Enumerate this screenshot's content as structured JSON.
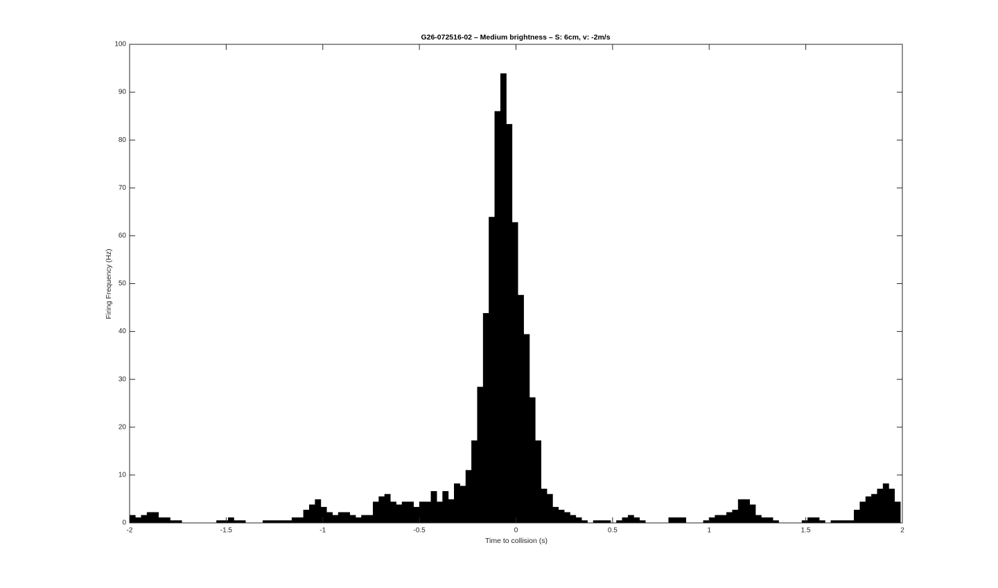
{
  "chart_data": {
    "type": "histogram",
    "title": "G26-072516-02 –  Medium brightness  – S: 6cm, v: -2m/s",
    "xlabel": "Time to collision (s)",
    "ylabel": "Firing Frequency (Hz)",
    "color": "#000000",
    "bins": [
      -2,
      -1.97,
      -1.94,
      -1.91,
      -1.88,
      -1.85,
      -1.82,
      -1.79,
      -1.76,
      -1.73,
      -1.7,
      -1.67,
      -1.64,
      -1.61,
      -1.58,
      -1.55,
      -1.52,
      -1.49,
      -1.46,
      -1.43,
      -1.4,
      -1.37,
      -1.34,
      -1.31,
      -1.28,
      -1.25,
      -1.22,
      -1.19,
      -1.16,
      -1.13,
      -1.1,
      -1.07,
      -1.04,
      -1.01,
      -0.98,
      -0.95,
      -0.92,
      -0.89,
      -0.86,
      -0.83,
      -0.8,
      -0.77,
      -0.74,
      -0.71,
      -0.68,
      -0.65,
      -0.62,
      -0.59,
      -0.56,
      -0.53,
      -0.5,
      -0.47,
      -0.44,
      -0.41,
      -0.38,
      -0.35,
      -0.32,
      -0.29,
      -0.26,
      -0.23,
      -0.2,
      -0.17,
      -0.14,
      -0.11,
      -0.08,
      -0.05,
      -0.02,
      0.01,
      0.04,
      0.07,
      0.1,
      0.13,
      0.16,
      0.19,
      0.22,
      0.25,
      0.28,
      0.31,
      0.34,
      0.37,
      0.4,
      0.43,
      0.46,
      0.49,
      0.52,
      0.55,
      0.58,
      0.61,
      0.64,
      0.67,
      0.7,
      0.73,
      0.76,
      0.79,
      0.82,
      0.85,
      0.88,
      0.91,
      0.94,
      0.97,
      1.0,
      1.03,
      1.06,
      1.09,
      1.12,
      1.15,
      1.18,
      1.21,
      1.24,
      1.27,
      1.3,
      1.33,
      1.36,
      1.39,
      1.42,
      1.45,
      1.48,
      1.51,
      1.54,
      1.57,
      1.6,
      1.63,
      1.66,
      1.69,
      1.72,
      1.75,
      1.78,
      1.81,
      1.84,
      1.87,
      1.9,
      1.93,
      1.96,
      1.99
    ],
    "values": [
      1.6,
      1.1,
      1.6,
      2.2,
      2.2,
      1.1,
      1.1,
      0.5,
      0.5,
      0,
      0,
      0,
      0,
      0,
      0,
      0.5,
      0.5,
      1.1,
      0.5,
      0.5,
      0,
      0,
      0,
      0.5,
      0.5,
      0.5,
      0.5,
      0.5,
      1.1,
      1.1,
      2.7,
      3.8,
      4.9,
      3.3,
      2.2,
      1.6,
      2.2,
      2.2,
      1.6,
      1.1,
      1.6,
      1.6,
      4.4,
      5.5,
      6.0,
      4.4,
      3.8,
      4.4,
      4.4,
      3.3,
      4.4,
      4.4,
      6.6,
      4.4,
      6.6,
      4.9,
      8.2,
      7.7,
      11,
      17.2,
      28.4,
      43.8,
      63.9,
      86,
      93.9,
      83.3,
      62.8,
      47.6,
      39.4,
      26.2,
      17.2,
      7.1,
      6.0,
      3.3,
      2.7,
      2.2,
      1.6,
      1.1,
      0.5,
      0,
      0.5,
      0.5,
      0.5,
      0,
      0.5,
      1.1,
      1.6,
      1.1,
      0.5,
      0,
      0,
      0,
      0,
      1.1,
      1.1,
      1.1,
      0,
      0,
      0,
      0.5,
      1.1,
      1.6,
      1.6,
      2.2,
      2.7,
      4.9,
      4.9,
      3.8,
      1.6,
      1.1,
      1.1,
      0.5,
      0,
      0,
      0,
      0,
      0.5,
      1.1,
      1.1,
      0.5,
      0,
      0.5,
      0.5,
      0.5,
      0.5,
      2.7,
      4.4,
      5.5,
      6.0,
      7.1,
      8.2,
      7.1,
      4.4
    ],
    "xlim": [
      -2,
      2
    ],
    "xticks": [
      -2,
      -1.5,
      -1,
      -0.5,
      0,
      0.5,
      1,
      1.5,
      2
    ],
    "ylim": [
      0,
      100
    ],
    "yticks": [
      0,
      10,
      20,
      30,
      40,
      50,
      60,
      70,
      80,
      90,
      100
    ],
    "grid": false
  }
}
